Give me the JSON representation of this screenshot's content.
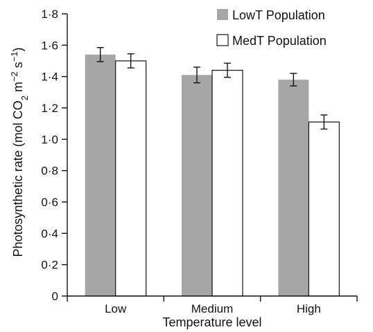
{
  "chart_data": {
    "type": "bar",
    "categories": [
      "Low",
      "Medium",
      "High"
    ],
    "series": [
      {
        "name": "LowT Population",
        "values": [
          1.54,
          1.41,
          1.38
        ],
        "errors": [
          0.045,
          0.05,
          0.04
        ],
        "color": "#a6a6a6"
      },
      {
        "name": "MedT Population",
        "values": [
          1.5,
          1.44,
          1.11
        ],
        "errors": [
          0.045,
          0.045,
          0.045
        ],
        "color": "#ffffff"
      }
    ],
    "xlabel": "Temperature level",
    "ylabel_parts": [
      {
        "t": "Photosynthetic rate (mol CO",
        "s": ""
      },
      {
        "t": "2",
        "s": "sub"
      },
      {
        "t": " m",
        "s": ""
      },
      {
        "t": "−2",
        "s": "sup"
      },
      {
        "t": " s",
        "s": ""
      },
      {
        "t": "−1",
        "s": "sup"
      },
      {
        "t": ")",
        "s": ""
      }
    ],
    "ylim": [
      0,
      1.8
    ],
    "yticks": [
      0,
      0.2,
      0.4,
      0.6,
      0.8,
      1.0,
      1.2,
      1.4,
      1.6,
      1.8
    ],
    "ytick_labels": [
      "0",
      "0·2",
      "0·4",
      "0·6",
      "0·8",
      "1·0",
      "1·2",
      "1·4",
      "1·6",
      "1·8"
    ],
    "legend_position": "top-right",
    "grid": false
  }
}
